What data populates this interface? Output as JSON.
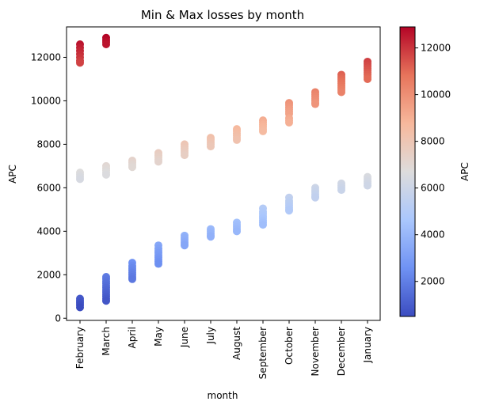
{
  "chart_data": {
    "type": "scatter",
    "title": "Min & Max losses by month",
    "xlabel": "month",
    "ylabel": "APC",
    "categories": [
      "February",
      "March",
      "April",
      "May",
      "June",
      "July",
      "August",
      "September",
      "October",
      "November",
      "December",
      "January"
    ],
    "ylim": [
      -100,
      13400
    ],
    "yticks": [
      0,
      2000,
      4000,
      6000,
      8000,
      10000,
      12000
    ],
    "series": [
      {
        "points": [
          {
            "month": "February",
            "values": [
              12600,
              12450,
              12300,
              12150,
              12000,
              11850,
              11750
            ]
          },
          {
            "month": "March",
            "values": [
              12900,
              12800,
              12700,
              12600
            ]
          },
          {
            "month": "April",
            "values": [
              7250,
              7150,
              7050,
              6950
            ]
          },
          {
            "month": "May",
            "values": [
              7600,
              7500,
              7400,
              7300,
              7200
            ]
          },
          {
            "month": "June",
            "values": [
              8000,
              7900,
              7800,
              7700,
              7600,
              7500
            ]
          },
          {
            "month": "July",
            "values": [
              8300,
              8200,
              8100,
              8000,
              7900
            ]
          },
          {
            "month": "August",
            "values": [
              8700,
              8600,
              8500,
              8400,
              8300,
              8200
            ]
          },
          {
            "month": "September",
            "values": [
              9100,
              9000,
              8900,
              8800,
              8700,
              8600
            ]
          },
          {
            "month": "October",
            "values": [
              9900,
              9800,
              9700,
              9600,
              9500,
              9400,
              9200,
              9100,
              9000
            ]
          },
          {
            "month": "November",
            "values": [
              10400,
              10300,
              10200,
              10100,
              10000,
              9900,
              9850
            ]
          },
          {
            "month": "December",
            "values": [
              11200,
              11100,
              11000,
              10900,
              10800,
              10700,
              10600,
              10500,
              10400
            ]
          },
          {
            "month": "January",
            "values": [
              11800,
              11700,
              11600,
              11500,
              11400,
              11300,
              11200,
              11100,
              11000
            ]
          }
        ]
      },
      {
        "points": [
          {
            "month": "February",
            "values": [
              6700,
              6600,
              6500,
              6400
            ]
          },
          {
            "month": "March",
            "values": [
              7000,
              6900,
              6800,
              6700,
              6600
            ]
          },
          {
            "month": "April",
            "values": [
              2550,
              2400,
              2300,
              2200,
              2100,
              2000,
              1900,
              1800
            ]
          },
          {
            "month": "May",
            "values": [
              3350,
              3200,
              3100,
              3000,
              2900,
              2800,
              2700,
              2600,
              2500
            ]
          },
          {
            "month": "June",
            "values": [
              3800,
              3700,
              3600,
              3500,
              3400,
              3350
            ]
          },
          {
            "month": "July",
            "values": [
              4100,
              4000,
              3900,
              3800,
              3750
            ]
          },
          {
            "month": "August",
            "values": [
              4400,
              4300,
              4200,
              4100,
              4000
            ]
          },
          {
            "month": "September",
            "values": [
              5050,
              4900,
              4800,
              4700,
              4600,
              4500,
              4400,
              4300
            ]
          },
          {
            "month": "October",
            "values": [
              5550,
              5400,
              5300,
              5200,
              5100,
              5000,
              4950
            ]
          },
          {
            "month": "November",
            "values": [
              6000,
              5900,
              5800,
              5700,
              5600,
              5550
            ]
          },
          {
            "month": "December",
            "values": [
              6200,
              6100,
              6000,
              5900
            ]
          },
          {
            "month": "January",
            "values": [
              6500,
              6400,
              6300,
              6200,
              6100
            ]
          }
        ]
      },
      {
        "points": [
          {
            "month": "February",
            "values": [
              900,
              800,
              700,
              600,
              500
            ]
          },
          {
            "month": "March",
            "values": [
              1900,
              1800,
              1700,
              1600,
              1500,
              1400,
              1300,
              1200,
              1100,
              1000,
              900,
              800
            ]
          }
        ]
      }
    ],
    "colorbar": {
      "label": "APC",
      "range": [
        500,
        12900
      ],
      "ticks": [
        2000,
        4000,
        6000,
        8000,
        10000,
        12000
      ],
      "colormap": "coolwarm",
      "stops": [
        "#3b4cc0",
        "#6f92f3",
        "#aac7fd",
        "#dddcdc",
        "#f7b89c",
        "#e7745b",
        "#b40426"
      ]
    },
    "grid": false,
    "legend": "none"
  }
}
